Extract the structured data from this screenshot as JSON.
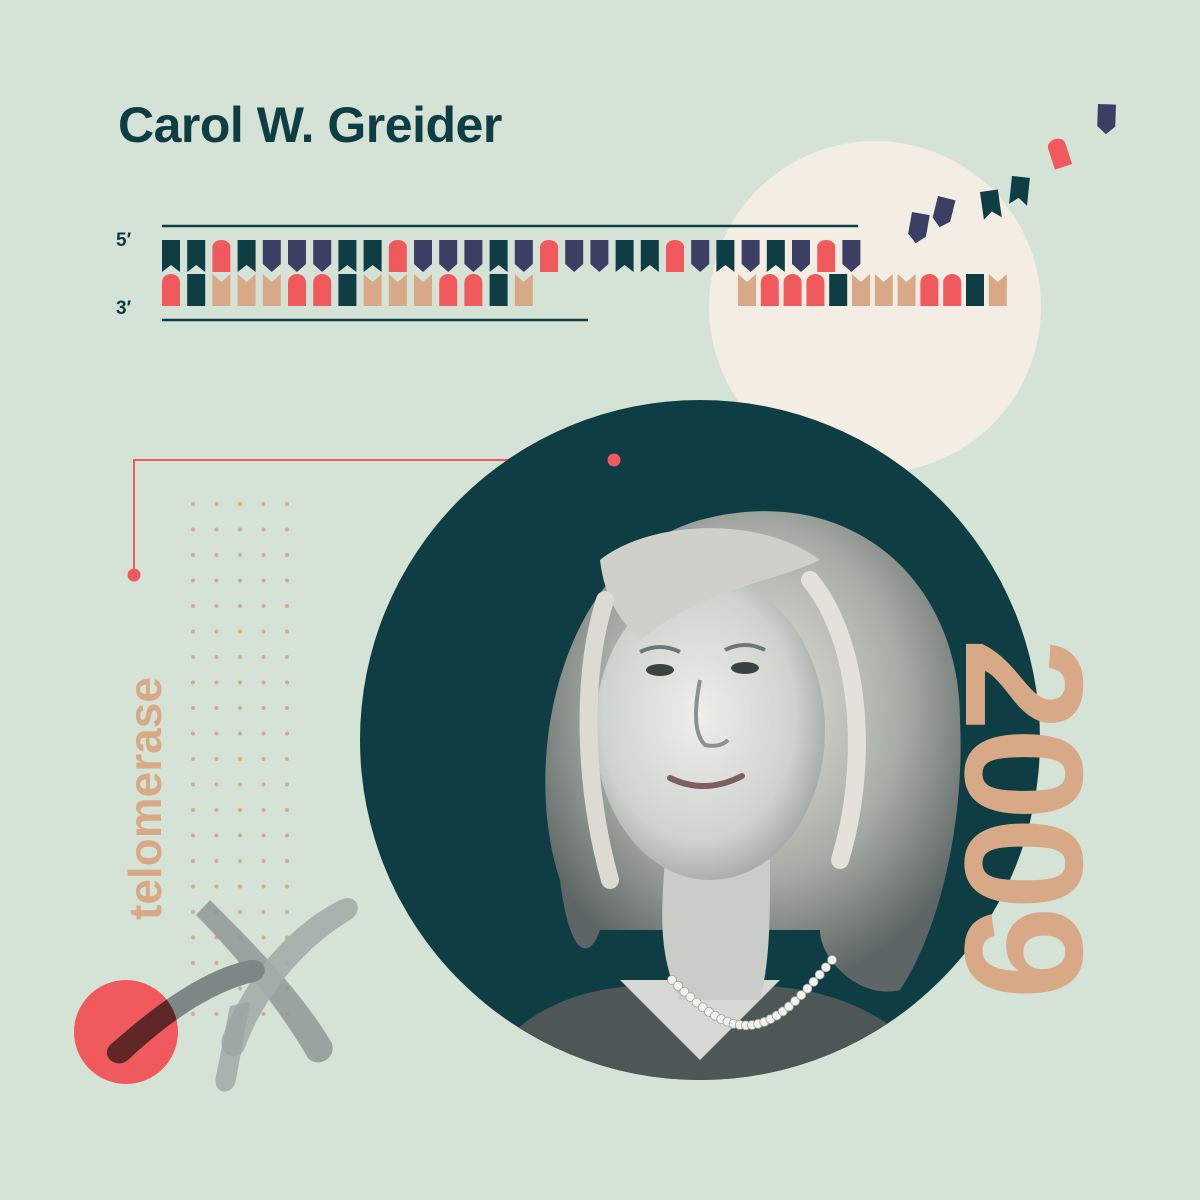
{
  "title": "Carol W. Greider",
  "labels": {
    "five_prime": "5′",
    "three_prime": "3′"
  },
  "keyword": "telomerase",
  "year": "2009",
  "colors": {
    "background": "#d5e3d7",
    "dark_teal": "#0f3d44",
    "navy": "#3b3f63",
    "coral": "#f05a5c",
    "tan": "#d8a987",
    "cream": "#f4ede3"
  },
  "dna": {
    "top_strand": [
      "teal",
      "teal",
      "coral",
      "teal",
      "navy",
      "navy",
      "navy",
      "teal",
      "teal",
      "coral",
      "navy",
      "navy",
      "navy",
      "teal",
      "navy",
      "coral",
      "navy",
      "navy",
      "teal",
      "teal",
      "coral",
      "navy",
      "teal",
      "navy",
      "teal",
      "navy",
      "coral",
      "navy"
    ],
    "bottom_strand": [
      "coral",
      "teal",
      "tan",
      "tan",
      "tan",
      "coral",
      "coral",
      "teal",
      "tan",
      "tan",
      "tan",
      "coral",
      "coral",
      "teal",
      "tan",
      "gap",
      "gap",
      "gap",
      "gap",
      "gap",
      "gap",
      "gap",
      "gap",
      "gap",
      "gap",
      "gap",
      "gap",
      "gap"
    ],
    "extension_strand": [
      "tan",
      "coral",
      "coral",
      "coral",
      "teal",
      "tan",
      "tan",
      "tan",
      "coral",
      "coral",
      "teal",
      "tan"
    ],
    "floating_units": [
      "navy",
      "navy",
      "teal",
      "teal",
      "coral",
      "navy"
    ]
  },
  "icons": {
    "portrait": "portrait-circle",
    "chromosome": "chromosome-illustration"
  }
}
